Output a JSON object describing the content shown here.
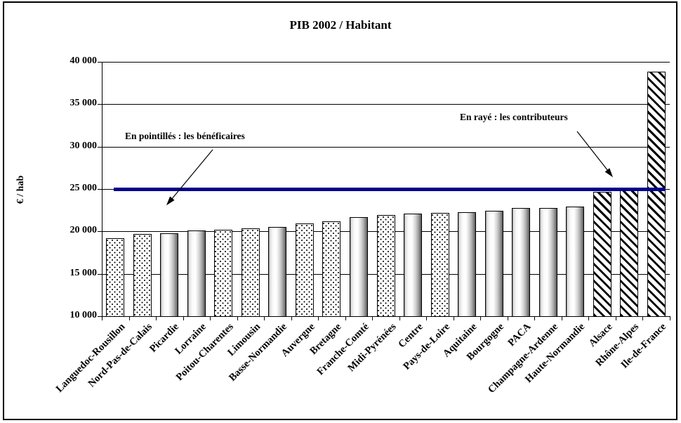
{
  "chart_data": {
    "type": "bar",
    "title": "PIB 2002 / Habitant",
    "ylabel": "€ / hab",
    "xlabel": "",
    "ylim": [
      10000,
      40000
    ],
    "ytick_step": 5000,
    "ytick_labels": [
      "10 000",
      "15 000",
      "20 000",
      "25 000",
      "30 000",
      "35 000",
      "40 000"
    ],
    "grid": true,
    "legend_position": "none",
    "categories": [
      "Languedoc-Rousillon",
      "Nord-Pas-de-Calais",
      "Picardie",
      "Lorraine",
      "Poitou-Charentes",
      "Limousin",
      "Basse-Normandie",
      "Auvergne",
      "Bretagne",
      "Franche-Comté",
      "Midi-Pyrénées",
      "Centre",
      "Pays-de-Loire",
      "Aquitaine",
      "Bourgogne",
      "PACA",
      "Champagne-Ardenne",
      "Haute-Normandie",
      "Alsace",
      "Rhône-Alpes",
      "Ile-de-France"
    ],
    "values": [
      19200,
      19700,
      19800,
      20100,
      20200,
      20400,
      20500,
      20900,
      21200,
      21700,
      21900,
      22100,
      22200,
      22300,
      22400,
      22800,
      22800,
      22900,
      24700,
      25100,
      38800
    ],
    "patterns": [
      "dotted",
      "dotted",
      "gradient",
      "gradient",
      "dotted",
      "dotted",
      "gradient",
      "dotted",
      "dotted",
      "gradient",
      "dotted",
      "gradient",
      "dotted",
      "gradient",
      "gradient",
      "gradient",
      "gradient",
      "gradient",
      "hatched",
      "hatched",
      "hatched"
    ],
    "annotations": {
      "dotted": "En pointillés : les bénéficaires",
      "hatched": "En rayé : les contributeurs"
    },
    "reference_line": {
      "value": 25000,
      "color": "#00008b"
    }
  }
}
